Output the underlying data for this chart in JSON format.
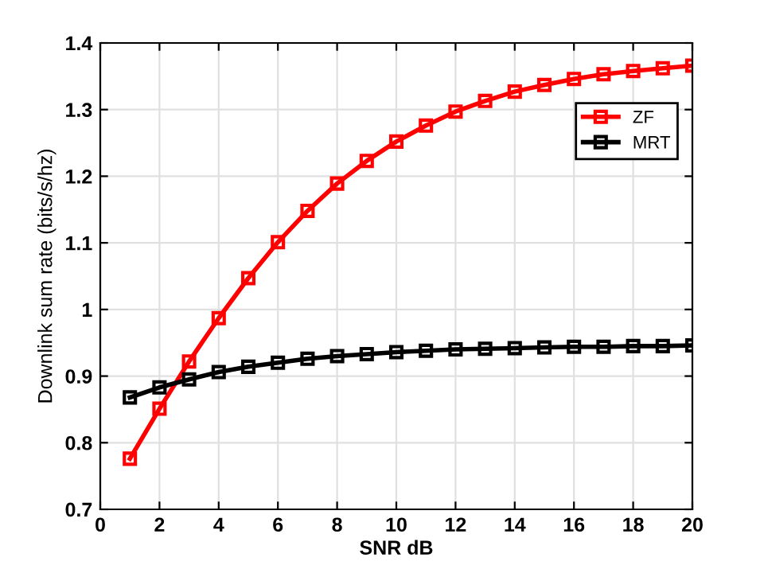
{
  "chart_data": {
    "type": "line",
    "xlabel": "SNR dB",
    "ylabel": "Downlink sum rate (bits/s/hz)",
    "x": [
      1,
      2,
      3,
      4,
      5,
      6,
      7,
      8,
      9,
      10,
      11,
      12,
      13,
      14,
      15,
      16,
      17,
      18,
      19,
      20
    ],
    "series": [
      {
        "name": "ZF",
        "color": "#ff0000",
        "values": [
          0.776,
          0.851,
          0.922,
          0.987,
          1.047,
          1.101,
          1.148,
          1.189,
          1.223,
          1.252,
          1.276,
          1.297,
          1.313,
          1.327,
          1.337,
          1.346,
          1.353,
          1.358,
          1.362,
          1.366
        ]
      },
      {
        "name": "MRT",
        "color": "#000000",
        "values": [
          0.868,
          0.883,
          0.895,
          0.906,
          0.914,
          0.92,
          0.926,
          0.93,
          0.933,
          0.936,
          0.938,
          0.94,
          0.941,
          0.942,
          0.943,
          0.944,
          0.944,
          0.945,
          0.945,
          0.946
        ]
      }
    ],
    "xlim": [
      0,
      20
    ],
    "xticks": [
      0,
      2,
      4,
      6,
      8,
      10,
      12,
      14,
      16,
      18,
      20
    ],
    "ylim": [
      0.7,
      1.4
    ],
    "yticks": [
      0.7,
      0.8,
      0.9,
      1,
      1.1,
      1.2,
      1.3,
      1.4
    ],
    "grid": true,
    "legend": "top right",
    "marker": "square",
    "line_style": "solid"
  }
}
